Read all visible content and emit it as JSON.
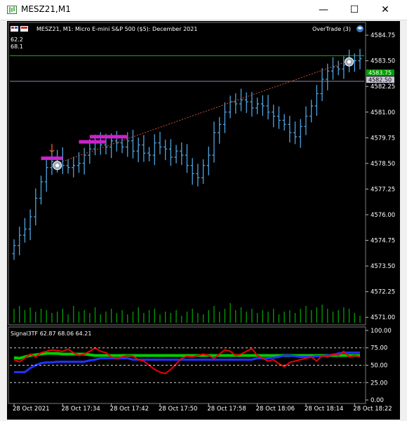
{
  "window": {
    "title": "MESZ21,M1",
    "minimize_glyph": "—",
    "maximize_glyph": "☐",
    "close_glyph": "✕"
  },
  "chart": {
    "info_line": "MESZ21, M1:  Micro E-mini S&P 500 ($5): December 2021",
    "top_left_values": [
      "62.2",
      "68.1"
    ],
    "expert_label": "OverTrade (3)",
    "indicator_label": "Signal3TF 62.87 68.06 64.21",
    "ask_badge": "4583.75",
    "bid_badge": "4582.50",
    "colors": {
      "up": "#4fa3e0",
      "trend": "#d2522a",
      "volume": "#00a000",
      "ask_line": "#00c000",
      "bid_line": "#8a8aa8",
      "zone": "#cc22cc"
    }
  },
  "chart_data": [
    {
      "type": "candlestick",
      "title": "MESZ21, M1:  Micro E-mini S&P 500 ($5): December 2021",
      "ylim": [
        4570.7,
        4585.3
      ],
      "y_ticks": [
        "4584.75",
        "4583.50",
        "4582.25",
        "4581.00",
        "4579.75",
        "4578.50",
        "4577.25",
        "4576.00",
        "4574.75",
        "4573.50",
        "4572.25",
        "4571.00"
      ],
      "x_ticks": [
        "28 Oct 2021",
        "28 Oct 17:34",
        "28 Oct 17:42",
        "28 Oct 17:50",
        "28 Oct 17:58",
        "28 Oct 18:06",
        "28 Oct 18:14",
        "28 Oct 18:22"
      ],
      "closes": [
        4574.5,
        4575.0,
        4575.3,
        4575.9,
        4576.8,
        4577.6,
        4578.3,
        4578.6,
        4578.8,
        4578.4,
        4578.3,
        4578.4,
        4578.5,
        4578.9,
        4579.2,
        4579.6,
        4579.4,
        4579.3,
        4579.6,
        4579.5,
        4579.3,
        4579.6,
        4579.1,
        4579.4,
        4579.0,
        4578.9,
        4579.5,
        4579.3,
        4579.2,
        4578.8,
        4579.1,
        4578.9,
        4578.4,
        4578.0,
        4577.8,
        4578.4,
        4578.9,
        4580.0,
        4580.4,
        4581.0,
        4581.5,
        4581.4,
        4581.6,
        4581.5,
        4581.2,
        4581.4,
        4581.3,
        4581.0,
        4580.8,
        4580.6,
        4580.4,
        4580.0,
        4579.8,
        4580.3,
        4580.8,
        4581.3,
        4581.9,
        4582.6,
        4583.0,
        4583.2,
        4583.1,
        4583.3,
        4583.5,
        4583.5,
        4583.6
      ],
      "volumes": [
        10,
        12,
        9,
        11,
        8,
        10,
        9,
        7,
        8,
        10,
        6,
        12,
        8,
        9,
        7,
        11,
        6,
        8,
        10,
        7,
        9,
        6,
        8,
        11,
        7,
        9,
        10,
        6,
        8,
        7,
        9,
        5,
        8,
        10,
        7,
        6,
        9,
        12,
        8,
        10,
        14,
        9,
        11,
        8,
        10,
        7,
        9,
        8,
        10,
        6,
        8,
        9,
        7,
        10,
        12,
        9,
        11,
        13,
        10,
        8,
        9,
        11,
        10,
        7,
        5
      ],
      "trend_line": {
        "from": [
          4578.5,
          4578.5
        ],
        "to": [
          4583.5,
          4583.5
        ]
      },
      "ask": 4583.75,
      "bid": 4582.5
    },
    {
      "type": "line",
      "title": "Signal3TF 62.87 68.06 64.21",
      "ylim": [
        -3,
        103
      ],
      "y_ticks": [
        "100.00",
        "75.00",
        "50.00",
        "25.00",
        "0.00"
      ],
      "levels": [
        75,
        50,
        25
      ],
      "series": [
        {
          "color": "#00cc00",
          "values": [
            61,
            60,
            62,
            64,
            65,
            66,
            67,
            67,
            67,
            66,
            66,
            66,
            66,
            66,
            65,
            64,
            64,
            64,
            64,
            64,
            64,
            64,
            64,
            64,
            64,
            64,
            64,
            64,
            64,
            64,
            64,
            64,
            64,
            64,
            64,
            64,
            64,
            64,
            64,
            64,
            64,
            64,
            64,
            64,
            64,
            64,
            64,
            64,
            64,
            64,
            64,
            64,
            64,
            64,
            64,
            64,
            64,
            64,
            64,
            64,
            64,
            64,
            64,
            64,
            64
          ]
        },
        {
          "color": "#2233ff",
          "values": [
            40,
            40,
            40,
            46,
            50,
            53,
            54,
            54,
            55,
            55,
            55,
            55,
            55,
            55,
            57,
            58,
            60,
            60,
            60,
            60,
            60,
            60,
            58,
            58,
            58,
            58,
            58,
            58,
            58,
            58,
            58,
            58,
            58,
            58,
            58,
            58,
            58,
            58,
            58,
            58,
            58,
            58,
            58,
            58,
            58,
            60,
            60,
            60,
            61,
            62,
            64,
            64,
            63,
            62,
            62,
            62,
            63,
            63,
            64,
            65,
            67,
            68,
            68,
            68,
            68
          ]
        },
        {
          "color": "#ee0000",
          "values": [
            58,
            55,
            60,
            66,
            62,
            68,
            70,
            72,
            71,
            70,
            73,
            68,
            64,
            66,
            70,
            75,
            70,
            68,
            62,
            60,
            62,
            64,
            63,
            58,
            56,
            50,
            44,
            40,
            38,
            44,
            52,
            60,
            63,
            62,
            64,
            66,
            64,
            60,
            66,
            72,
            70,
            64,
            66,
            70,
            74,
            64,
            60,
            56,
            58,
            52,
            48,
            54,
            56,
            58,
            60,
            62,
            56,
            64,
            62,
            66,
            64,
            70,
            62,
            64,
            62
          ]
        }
      ]
    }
  ]
}
